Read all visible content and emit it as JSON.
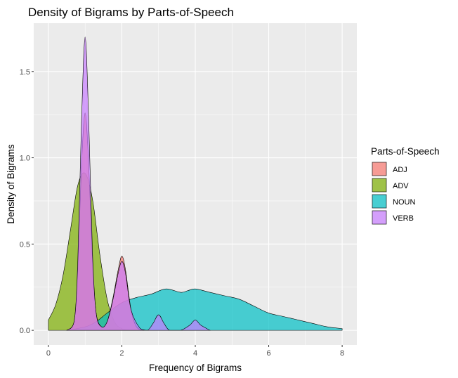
{
  "chart_data": {
    "type": "area",
    "subtype": "density",
    "title": "Density of Bigrams by Parts-of-Speech",
    "xlabel": "Frequency of Bigrams",
    "ylabel": "Density of Bigrams",
    "xlim": [
      -0.4,
      8.4
    ],
    "ylim": [
      -0.085,
      1.78
    ],
    "x_ticks": [
      0,
      2,
      4,
      6,
      8
    ],
    "x_tick_labels": [
      "0",
      "2",
      "4",
      "6",
      "8"
    ],
    "y_ticks": [
      0,
      0.5,
      1,
      1.5
    ],
    "y_tick_labels": [
      "0.0",
      "0.5",
      "1.0",
      "1.5"
    ],
    "grid": true,
    "legend": {
      "title": "Parts-of-Speech",
      "position": "right"
    },
    "series": [
      {
        "name": "ADV",
        "color": "#7CAE00",
        "x": [
          0,
          0.2,
          0.4,
          0.6,
          0.8,
          1.0,
          1.2,
          1.4,
          1.6,
          1.8,
          2.0,
          2.2,
          2.4
        ],
        "y": [
          0.06,
          0.15,
          0.32,
          0.58,
          0.84,
          0.91,
          0.76,
          0.44,
          0.18,
          0.05,
          0.01,
          0.0,
          0.0
        ]
      },
      {
        "name": "NOUN",
        "color": "#00BFC4",
        "x": [
          0.5,
          1.0,
          1.3,
          1.6,
          2.0,
          2.4,
          2.8,
          3.2,
          3.6,
          3.8,
          4.0,
          4.4,
          4.8,
          5.2,
          5.6,
          6.0,
          6.4,
          6.8,
          7.2,
          7.6,
          8.0
        ],
        "y": [
          0.0,
          0.02,
          0.05,
          0.1,
          0.16,
          0.19,
          0.21,
          0.24,
          0.22,
          0.23,
          0.24,
          0.22,
          0.2,
          0.18,
          0.14,
          0.1,
          0.08,
          0.06,
          0.04,
          0.02,
          0.01
        ]
      },
      {
        "name": "ADJ",
        "color": "#F8766D",
        "x": [
          0.5,
          0.7,
          0.8,
          0.9,
          1.0,
          1.1,
          1.2,
          1.3,
          1.45,
          1.6,
          1.75,
          1.9,
          2.0,
          2.1,
          2.25,
          2.4,
          2.6
        ],
        "y": [
          0.0,
          0.05,
          0.35,
          0.95,
          1.26,
          0.95,
          0.4,
          0.1,
          0.02,
          0.05,
          0.18,
          0.35,
          0.43,
          0.35,
          0.12,
          0.02,
          0.0
        ]
      },
      {
        "name": "VERB",
        "color": "#C77CFF",
        "x": [
          0.5,
          0.7,
          0.8,
          0.9,
          1.0,
          1.1,
          1.2,
          1.3,
          1.45,
          1.6,
          1.75,
          1.9,
          2.0,
          2.1,
          2.25,
          2.5,
          2.7,
          2.85,
          3.0,
          3.15,
          3.3,
          3.6,
          3.85,
          4.0,
          4.15,
          4.4
        ],
        "y": [
          0.0,
          0.05,
          0.4,
          1.2,
          1.7,
          1.2,
          0.45,
          0.1,
          0.02,
          0.05,
          0.17,
          0.33,
          0.4,
          0.33,
          0.12,
          0.01,
          0.0,
          0.04,
          0.09,
          0.04,
          0.0,
          0.0,
          0.03,
          0.06,
          0.03,
          0.0
        ]
      }
    ]
  }
}
